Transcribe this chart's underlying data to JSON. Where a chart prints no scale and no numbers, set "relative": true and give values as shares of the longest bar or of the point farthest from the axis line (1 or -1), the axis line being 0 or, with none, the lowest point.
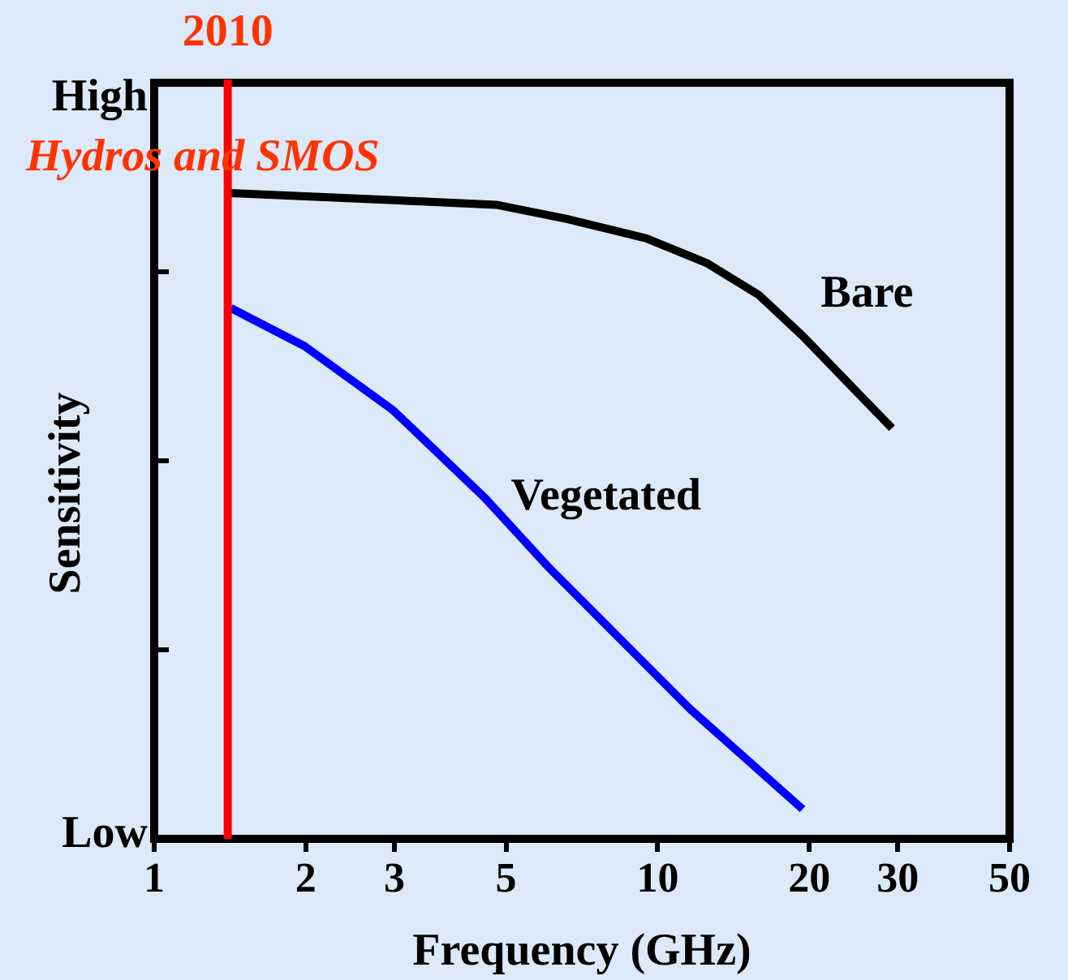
{
  "chart_data": {
    "type": "line",
    "xlabel": "Frequency (GHz)",
    "ylabel": "Sensitivity",
    "log": "x",
    "relative": true,
    "xlim": [
      1,
      50
    ],
    "xticks": [
      1,
      2,
      3,
      5,
      10,
      20,
      30,
      50
    ],
    "series": [
      {
        "name": "Bare",
        "color": "#000000",
        "x": [
          1.42,
          2,
          3,
          4.78,
          6.6,
          9.5,
          12.5,
          15.9,
          19.4,
          29.2
        ],
        "values": [
          1,
          0.995,
          0.989,
          0.982,
          0.96,
          0.93,
          0.892,
          0.842,
          0.779,
          0.636
        ]
      },
      {
        "name": "Vegetated",
        "color": "#0000ff",
        "x": [
          1.42,
          1.99,
          2.98,
          4.54,
          6.1,
          11.6,
          19.4
        ],
        "values": [
          0.822,
          0.763,
          0.664,
          0.528,
          0.419,
          0.201,
          0.046
        ]
      }
    ],
    "ref_lines": [
      {
        "axis": "x",
        "value": 1.4,
        "color": "#ff0000"
      }
    ],
    "annotations": [
      "High",
      "Low",
      "Hydros and SMOS",
      "2010"
    ],
    "marker": "none",
    "line_style": "solid",
    "legend": false,
    "grid": false
  }
}
